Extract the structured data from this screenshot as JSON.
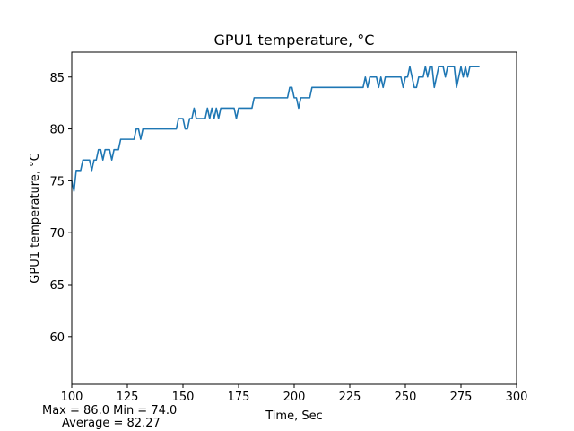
{
  "chart_data": {
    "type": "line",
    "title": "GPU1 temperature, °C",
    "xlabel": "Time, Sec",
    "ylabel": "GPU1 temperature, °C",
    "xlim": [
      100,
      300
    ],
    "ylim": [
      55.4,
      87.4
    ],
    "x_ticks": [
      100,
      125,
      150,
      175,
      200,
      225,
      250,
      275,
      300
    ],
    "y_ticks": [
      60,
      65,
      70,
      75,
      80,
      85
    ],
    "grid": false,
    "series": [
      {
        "color": "#1f77b4",
        "x": [
          100,
          101,
          102,
          103,
          104,
          105,
          106,
          107,
          108,
          109,
          110,
          111,
          112,
          113,
          114,
          115,
          116,
          117,
          118,
          119,
          120,
          121,
          122,
          123,
          124,
          125,
          126,
          127,
          128,
          129,
          130,
          131,
          132,
          133,
          134,
          135,
          136,
          137,
          138,
          139,
          140,
          141,
          142,
          143,
          144,
          145,
          146,
          147,
          148,
          149,
          150,
          151,
          152,
          153,
          154,
          155,
          156,
          157,
          158,
          159,
          160,
          161,
          162,
          163,
          164,
          165,
          166,
          167,
          168,
          169,
          170,
          171,
          172,
          173,
          174,
          175,
          176,
          177,
          178,
          179,
          180,
          181,
          182,
          183,
          184,
          185,
          186,
          187,
          188,
          189,
          190,
          191,
          192,
          193,
          194,
          195,
          196,
          197,
          198,
          199,
          200,
          201,
          202,
          203,
          204,
          205,
          206,
          207,
          208,
          209,
          210,
          211,
          212,
          213,
          214,
          215,
          216,
          217,
          218,
          219,
          220,
          221,
          222,
          223,
          224,
          225,
          226,
          227,
          228,
          229,
          230,
          231,
          232,
          233,
          234,
          235,
          236,
          237,
          238,
          239,
          240,
          241,
          242,
          243,
          244,
          245,
          246,
          247,
          248,
          249,
          250,
          251,
          252,
          253,
          254,
          255,
          256,
          257,
          258,
          259,
          260,
          261,
          262,
          263,
          264,
          265,
          266,
          267,
          268,
          269,
          270,
          271,
          272,
          273,
          274,
          275,
          276,
          277,
          278,
          279,
          280,
          281,
          282,
          283
        ],
        "y": [
          75,
          74,
          76,
          76,
          76,
          77,
          77,
          77,
          77,
          76,
          77,
          77,
          78,
          78,
          77,
          78,
          78,
          78,
          77,
          78,
          78,
          78,
          79,
          79,
          79,
          79,
          79,
          79,
          79,
          80,
          80,
          79,
          80,
          80,
          80,
          80,
          80,
          80,
          80,
          80,
          80,
          80,
          80,
          80,
          80,
          80,
          80,
          80,
          81,
          81,
          81,
          80,
          80,
          81,
          81,
          82,
          81,
          81,
          81,
          81,
          81,
          82,
          81,
          82,
          81,
          82,
          81,
          82,
          82,
          82,
          82,
          82,
          82,
          82,
          81,
          82,
          82,
          82,
          82,
          82,
          82,
          82,
          83,
          83,
          83,
          83,
          83,
          83,
          83,
          83,
          83,
          83,
          83,
          83,
          83,
          83,
          83,
          83,
          84,
          84,
          83,
          83,
          82,
          83,
          83,
          83,
          83,
          83,
          84,
          84,
          84,
          84,
          84,
          84,
          84,
          84,
          84,
          84,
          84,
          84,
          84,
          84,
          84,
          84,
          84,
          84,
          84,
          84,
          84,
          84,
          84,
          84,
          85,
          84,
          85,
          85,
          85,
          85,
          84,
          85,
          84,
          85,
          85,
          85,
          85,
          85,
          85,
          85,
          85,
          84,
          85,
          85,
          86,
          85,
          84,
          84,
          85,
          85,
          85,
          86,
          85,
          86,
          86,
          84,
          85,
          86,
          86,
          86,
          85,
          86,
          86,
          86,
          86,
          84,
          85,
          86,
          85,
          86,
          85,
          86,
          86,
          86,
          86,
          86
        ]
      }
    ],
    "stats": {
      "line1": "Max = 86.0  Min = 74.0",
      "line2": "Average = 82.27"
    }
  }
}
